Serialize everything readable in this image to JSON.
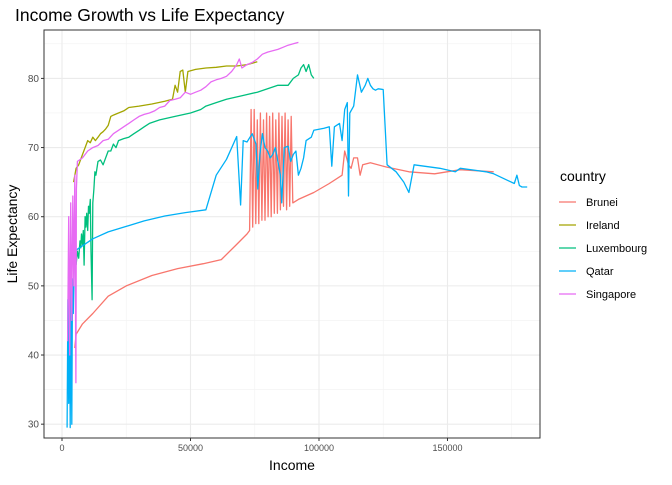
{
  "chart_data": {
    "type": "line",
    "title": "Income Growth vs Life Expectancy",
    "xlabel": "Income",
    "ylabel": "Life Expectancy",
    "xlim": [
      -7000,
      186000
    ],
    "ylim": [
      28,
      87
    ],
    "x_ticks": [
      0,
      50000,
      100000,
      150000
    ],
    "x_tick_labels": [
      "0",
      "50000",
      "100000",
      "150000"
    ],
    "y_ticks": [
      30,
      40,
      50,
      60,
      70,
      80
    ],
    "y_tick_labels": [
      "30",
      "40",
      "50",
      "60",
      "70",
      "80"
    ],
    "grid": true,
    "legend_title": "country",
    "legend_position": "right",
    "series": [
      {
        "name": "Brunei",
        "color": "#F8766D",
        "points": [
          [
            5000,
            41
          ],
          [
            5500,
            43
          ],
          [
            8000,
            44.5
          ],
          [
            12000,
            46
          ],
          [
            18000,
            48.5
          ],
          [
            25000,
            50
          ],
          [
            35000,
            51.5
          ],
          [
            45000,
            52.5
          ],
          [
            55000,
            53.2
          ],
          [
            62000,
            53.8
          ],
          [
            68000,
            56
          ],
          [
            72000,
            57.5
          ],
          [
            73000,
            58
          ],
          [
            73600,
            75.5
          ],
          [
            74200,
            58.5
          ],
          [
            74800,
            75.5
          ],
          [
            75400,
            59
          ],
          [
            76000,
            74
          ],
          [
            76600,
            59
          ],
          [
            77200,
            75
          ],
          [
            77800,
            59.5
          ],
          [
            78400,
            74
          ],
          [
            79000,
            59.5
          ],
          [
            79600,
            75
          ],
          [
            80200,
            60
          ],
          [
            80800,
            74.5
          ],
          [
            81400,
            60
          ],
          [
            82000,
            75
          ],
          [
            82600,
            60.5
          ],
          [
            83200,
            74
          ],
          [
            83800,
            60.5
          ],
          [
            84400,
            75
          ],
          [
            85000,
            61
          ],
          [
            85600,
            74.5
          ],
          [
            86200,
            61.5
          ],
          [
            86800,
            75
          ],
          [
            87400,
            61
          ],
          [
            88000,
            74
          ],
          [
            88600,
            61.5
          ],
          [
            89200,
            74.5
          ],
          [
            89800,
            62
          ],
          [
            92000,
            62.5
          ],
          [
            98000,
            63.5
          ],
          [
            104000,
            64.8
          ],
          [
            109000,
            66
          ],
          [
            110000,
            69.5
          ],
          [
            111500,
            67.5
          ],
          [
            112500,
            67
          ],
          [
            113500,
            68.5
          ],
          [
            115000,
            68.5
          ],
          [
            116000,
            66
          ],
          [
            117000,
            67.5
          ],
          [
            120000,
            67.8
          ],
          [
            126000,
            67.2
          ],
          [
            135000,
            66.5
          ],
          [
            145000,
            66.2
          ],
          [
            155000,
            66.8
          ],
          [
            168000,
            66.5
          ]
        ]
      },
      {
        "name": "Ireland",
        "color": "#A3A500",
        "points": [
          [
            4500,
            65
          ],
          [
            5500,
            67
          ],
          [
            6500,
            67.5
          ],
          [
            8000,
            69
          ],
          [
            9000,
            70
          ],
          [
            10000,
            71
          ],
          [
            11000,
            70.7
          ],
          [
            12000,
            71.5
          ],
          [
            13000,
            71
          ],
          [
            14000,
            71.5
          ],
          [
            15000,
            72
          ],
          [
            16000,
            72.3
          ],
          [
            17000,
            72.7
          ],
          [
            18000,
            73.2
          ],
          [
            19000,
            74.5
          ],
          [
            20000,
            74.7
          ],
          [
            22000,
            75
          ],
          [
            24000,
            75.3
          ],
          [
            26000,
            75.8
          ],
          [
            30000,
            76
          ],
          [
            35000,
            76.3
          ],
          [
            40000,
            76.7
          ],
          [
            43000,
            77
          ],
          [
            44000,
            79
          ],
          [
            45000,
            78
          ],
          [
            46000,
            81
          ],
          [
            47000,
            81.2
          ],
          [
            48000,
            78
          ],
          [
            49000,
            81
          ],
          [
            52000,
            81.3
          ],
          [
            56000,
            81.5
          ],
          [
            60000,
            81.6
          ],
          [
            64000,
            81.8
          ],
          [
            68000,
            81.8
          ],
          [
            72000,
            82
          ],
          [
            74000,
            82.2
          ],
          [
            76000,
            82.4
          ]
        ]
      },
      {
        "name": "Luxembourg",
        "color": "#00BF7D",
        "points": [
          [
            5500,
            53
          ],
          [
            6000,
            55
          ],
          [
            6500,
            54
          ],
          [
            7000,
            56.5
          ],
          [
            7300,
            55.5
          ],
          [
            7600,
            57.5
          ],
          [
            8000,
            56
          ],
          [
            8300,
            58
          ],
          [
            8600,
            53
          ],
          [
            9000,
            60
          ],
          [
            9300,
            58.5
          ],
          [
            9600,
            60.5
          ],
          [
            10000,
            58
          ],
          [
            10300,
            61.5
          ],
          [
            10600,
            60.5
          ],
          [
            11000,
            62.5
          ],
          [
            11300,
            55
          ],
          [
            11700,
            48
          ],
          [
            12000,
            62
          ],
          [
            12400,
            64
          ],
          [
            12800,
            66.5
          ],
          [
            13200,
            66
          ],
          [
            14000,
            68
          ],
          [
            15000,
            68.2
          ],
          [
            16000,
            67.5
          ],
          [
            18000,
            69.5
          ],
          [
            19000,
            69.5
          ],
          [
            20000,
            70.5
          ],
          [
            21000,
            70
          ],
          [
            22000,
            71
          ],
          [
            24000,
            71.3
          ],
          [
            26000,
            71.5
          ],
          [
            28000,
            72
          ],
          [
            30000,
            72.5
          ],
          [
            32000,
            73
          ],
          [
            34000,
            73.5
          ],
          [
            38000,
            74
          ],
          [
            44000,
            74.5
          ],
          [
            50000,
            75
          ],
          [
            54000,
            75.5
          ],
          [
            56000,
            76
          ],
          [
            60000,
            76.5
          ],
          [
            64000,
            77
          ],
          [
            70000,
            77.5
          ],
          [
            76000,
            78
          ],
          [
            80000,
            78.5
          ],
          [
            84000,
            79
          ],
          [
            88000,
            79
          ],
          [
            90000,
            80
          ],
          [
            92000,
            80.5
          ],
          [
            93000,
            81.5
          ],
          [
            94000,
            82
          ],
          [
            95000,
            81
          ],
          [
            96000,
            82
          ],
          [
            97000,
            80.5
          ],
          [
            98000,
            80
          ]
        ]
      },
      {
        "name": "Qatar",
        "color": "#00B0F6",
        "points": [
          [
            2000,
            29.5
          ],
          [
            2300,
            48
          ],
          [
            2600,
            33
          ],
          [
            2900,
            51
          ],
          [
            3200,
            29.5
          ],
          [
            3500,
            50
          ],
          [
            3800,
            30
          ],
          [
            4100,
            51
          ],
          [
            4400,
            46
          ],
          [
            4800,
            54
          ],
          [
            5200,
            55
          ],
          [
            6000,
            55.3
          ],
          [
            8000,
            55.8
          ],
          [
            12000,
            56.8
          ],
          [
            18000,
            57.8
          ],
          [
            25000,
            58.6
          ],
          [
            32000,
            59.4
          ],
          [
            40000,
            60.1
          ],
          [
            48000,
            60.6
          ],
          [
            56000,
            61
          ],
          [
            60000,
            66
          ],
          [
            64000,
            68.3
          ],
          [
            68000,
            71.6
          ],
          [
            69500,
            61.7
          ],
          [
            70500,
            71
          ],
          [
            72000,
            70.8
          ],
          [
            74000,
            72
          ],
          [
            75500,
            70.5
          ],
          [
            76200,
            64
          ],
          [
            77000,
            69
          ],
          [
            78000,
            72
          ],
          [
            79000,
            70
          ],
          [
            80000,
            69.5
          ],
          [
            81000,
            68.5
          ],
          [
            82000,
            69
          ],
          [
            83000,
            70
          ],
          [
            84000,
            68
          ],
          [
            85000,
            66
          ],
          [
            85500,
            62
          ],
          [
            86500,
            70
          ],
          [
            88000,
            70.2
          ],
          [
            89000,
            68
          ],
          [
            90000,
            69
          ],
          [
            91000,
            69.5
          ],
          [
            92000,
            66
          ],
          [
            93000,
            67
          ],
          [
            94000,
            68.5
          ],
          [
            95000,
            71
          ],
          [
            97000,
            71.5
          ],
          [
            98000,
            72.5
          ],
          [
            102000,
            72.8
          ],
          [
            104000,
            73
          ],
          [
            105000,
            67.3
          ],
          [
            106000,
            73
          ],
          [
            108000,
            73.5
          ],
          [
            109000,
            71
          ],
          [
            110000,
            75.5
          ],
          [
            111000,
            76.5
          ],
          [
            111500,
            63
          ],
          [
            112000,
            75
          ],
          [
            113500,
            76
          ],
          [
            115000,
            80.5
          ],
          [
            116500,
            78
          ],
          [
            118000,
            79
          ],
          [
            119000,
            80
          ],
          [
            120000,
            79
          ],
          [
            121000,
            78.5
          ],
          [
            122000,
            78.3
          ],
          [
            123000,
            78.5
          ],
          [
            125000,
            78.4
          ],
          [
            126500,
            67.5
          ],
          [
            130000,
            66.5
          ],
          [
            133000,
            65
          ],
          [
            135000,
            63.5
          ],
          [
            137000,
            67.5
          ],
          [
            147000,
            67
          ],
          [
            153000,
            66.5
          ],
          [
            155000,
            67
          ],
          [
            161000,
            66.7
          ],
          [
            165000,
            66.5
          ],
          [
            168000,
            66.2
          ],
          [
            172000,
            65.5
          ],
          [
            176000,
            64.8
          ],
          [
            177000,
            66
          ],
          [
            178000,
            64.5
          ],
          [
            179000,
            64.3
          ],
          [
            181000,
            64.3
          ]
        ]
      },
      {
        "name": "Singapore",
        "color": "#E76BF3",
        "points": [
          [
            2200,
            42
          ],
          [
            2600,
            60
          ],
          [
            3000,
            40
          ],
          [
            3400,
            62
          ],
          [
            3800,
            45
          ],
          [
            4200,
            63
          ],
          [
            4600,
            50
          ],
          [
            5000,
            66
          ],
          [
            5400,
            36
          ],
          [
            5600,
            64
          ],
          [
            6000,
            68
          ],
          [
            8000,
            68.5
          ],
          [
            10000,
            69.5
          ],
          [
            12000,
            70
          ],
          [
            14000,
            70.3
          ],
          [
            16000,
            71
          ],
          [
            18000,
            71.2
          ],
          [
            20000,
            72
          ],
          [
            22000,
            72.5
          ],
          [
            24000,
            73
          ],
          [
            26000,
            73.5
          ],
          [
            28000,
            74
          ],
          [
            30000,
            74.5
          ],
          [
            32000,
            74.8
          ],
          [
            34000,
            75
          ],
          [
            36000,
            75.3
          ],
          [
            38000,
            75.8
          ],
          [
            40000,
            76
          ],
          [
            42000,
            76.8
          ],
          [
            44000,
            77
          ],
          [
            46000,
            77.2
          ],
          [
            48000,
            78
          ],
          [
            50000,
            77.7
          ],
          [
            52000,
            78
          ],
          [
            54000,
            78.3
          ],
          [
            56000,
            78.8
          ],
          [
            58000,
            79.5
          ],
          [
            60000,
            79.8
          ],
          [
            62000,
            80
          ],
          [
            64000,
            80.3
          ],
          [
            66000,
            81
          ],
          [
            68000,
            82
          ],
          [
            69000,
            82.8
          ],
          [
            70000,
            81.5
          ],
          [
            72000,
            82
          ],
          [
            74000,
            82.3
          ],
          [
            76000,
            82.8
          ],
          [
            78000,
            83.5
          ],
          [
            80000,
            83.8
          ],
          [
            82000,
            84
          ],
          [
            84000,
            84.2
          ],
          [
            86000,
            84.5
          ],
          [
            88000,
            84.8
          ],
          [
            90000,
            85
          ],
          [
            92000,
            85.2
          ]
        ]
      }
    ]
  }
}
